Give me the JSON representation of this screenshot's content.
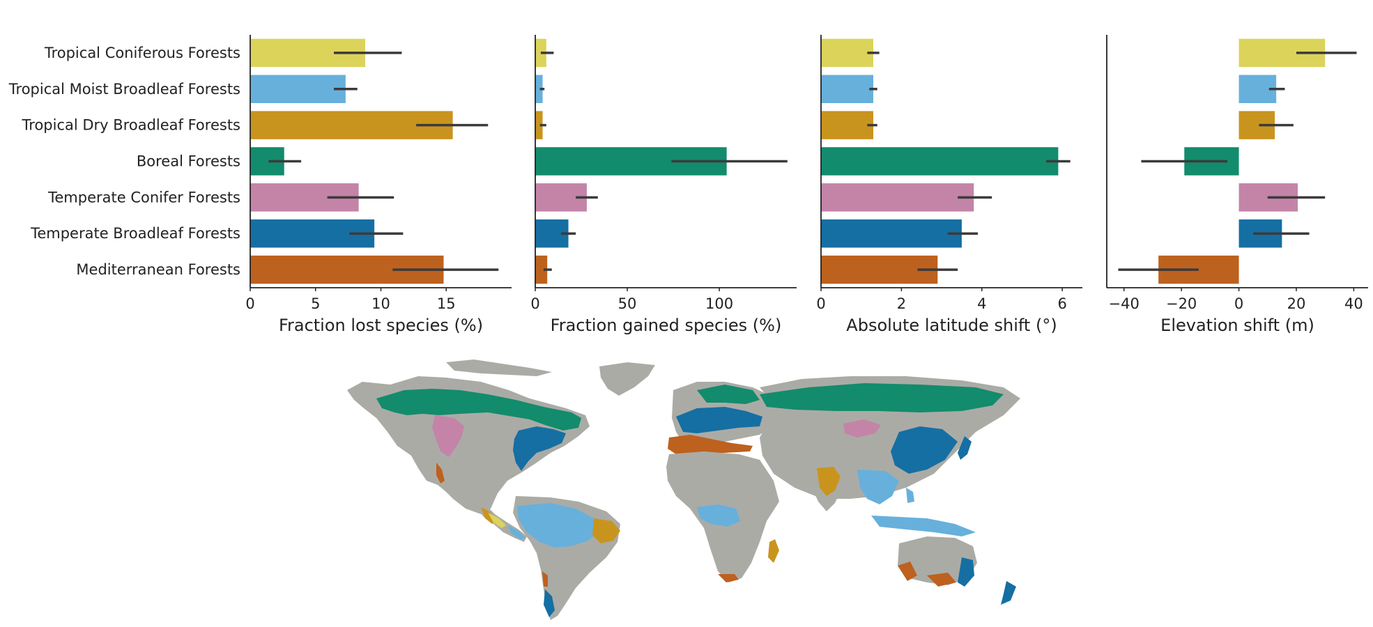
{
  "colors": {
    "Tropical Coniferous Forests": "#dcd35a",
    "Tropical Moist Broadleaf Forests": "#67b0dc",
    "Tropical Dry Broadleaf Forests": "#c9941e",
    "Boreal Forests": "#128c6c",
    "Temperate Conifer Forests": "#c384a8",
    "Temperate Broadleaf Forests": "#156fa3",
    "Mediterranean Forests": "#bd611e",
    "other_land": "#ababa6",
    "error_bar": "#3b3b3b"
  },
  "chart_data": [
    {
      "type": "bar",
      "orientation": "horizontal",
      "categories": [
        "Tropical Coniferous Forests",
        "Tropical Moist Broadleaf Forests",
        "Tropical Dry Broadleaf Forests",
        "Boreal Forests",
        "Temperate Conifer Forests",
        "Temperate Broadleaf Forests",
        "Mediterranean Forests"
      ],
      "values": [
        8.8,
        7.3,
        15.5,
        2.6,
        8.3,
        9.5,
        14.8
      ],
      "ci_low": [
        6.4,
        6.4,
        12.7,
        1.4,
        5.9,
        7.6,
        10.9
      ],
      "ci_high": [
        11.6,
        8.2,
        18.2,
        3.9,
        11.0,
        11.7,
        19.0
      ],
      "xlabel": "Fraction lost species (%)",
      "xlim": [
        0,
        20
      ],
      "xticks": [
        0,
        5,
        10,
        15
      ],
      "xtick_labels": [
        "0",
        "5",
        "10",
        "15"
      ]
    },
    {
      "type": "bar",
      "orientation": "horizontal",
      "categories": [
        "Tropical Coniferous Forests",
        "Tropical Moist Broadleaf Forests",
        "Tropical Dry Broadleaf Forests",
        "Boreal Forests",
        "Temperate Conifer Forests",
        "Temperate Broadleaf Forests",
        "Mediterranean Forests"
      ],
      "values": [
        6,
        4,
        4,
        104,
        28,
        18,
        6.5
      ],
      "ci_low": [
        3,
        2.5,
        2.5,
        74,
        22,
        14,
        4.5
      ],
      "ci_high": [
        10,
        5,
        6,
        137,
        34,
        22,
        9
      ],
      "xlabel": "Fraction gained species (%)",
      "xlim": [
        0,
        142
      ],
      "xticks": [
        0,
        50,
        100
      ],
      "xtick_labels": [
        "0",
        "50",
        "100"
      ]
    },
    {
      "type": "bar",
      "orientation": "horizontal",
      "categories": [
        "Tropical Coniferous Forests",
        "Tropical Moist Broadleaf Forests",
        "Tropical Dry Broadleaf Forests",
        "Boreal Forests",
        "Temperate Conifer Forests",
        "Temperate Broadleaf Forests",
        "Mediterranean Forests"
      ],
      "values": [
        1.3,
        1.3,
        1.3,
        5.9,
        3.8,
        3.5,
        2.9
      ],
      "ci_low": [
        1.15,
        1.2,
        1.15,
        5.6,
        3.4,
        3.15,
        2.4
      ],
      "ci_high": [
        1.45,
        1.4,
        1.4,
        6.2,
        4.25,
        3.9,
        3.4
      ],
      "xlabel": "Absolute latitude shift (°)",
      "xlim": [
        0,
        6.5
      ],
      "xticks": [
        0,
        2,
        4,
        6
      ],
      "xtick_labels": [
        "0",
        "2",
        "4",
        "6"
      ]
    },
    {
      "type": "bar",
      "orientation": "horizontal",
      "categories": [
        "Tropical Coniferous Forests",
        "Tropical Moist Broadleaf Forests",
        "Tropical Dry Broadleaf Forests",
        "Boreal Forests",
        "Temperate Conifer Forests",
        "Temperate Broadleaf Forests",
        "Mediterranean Forests"
      ],
      "values": [
        30,
        13,
        12.5,
        -19,
        20.5,
        15,
        -28
      ],
      "ci_low": [
        20,
        10.5,
        7,
        -34,
        10,
        5,
        -42
      ],
      "ci_high": [
        41,
        16,
        19,
        -4,
        30,
        24.5,
        -14
      ],
      "xlabel": "Elevation shift (m)",
      "xlim": [
        -46,
        45
      ],
      "xticks": [
        -40,
        -20,
        0,
        20,
        40
      ],
      "xtick_labels": [
        "−40",
        "−20",
        "0",
        "20",
        "40"
      ]
    },
    {
      "type": "map",
      "legend": "none"
    }
  ]
}
